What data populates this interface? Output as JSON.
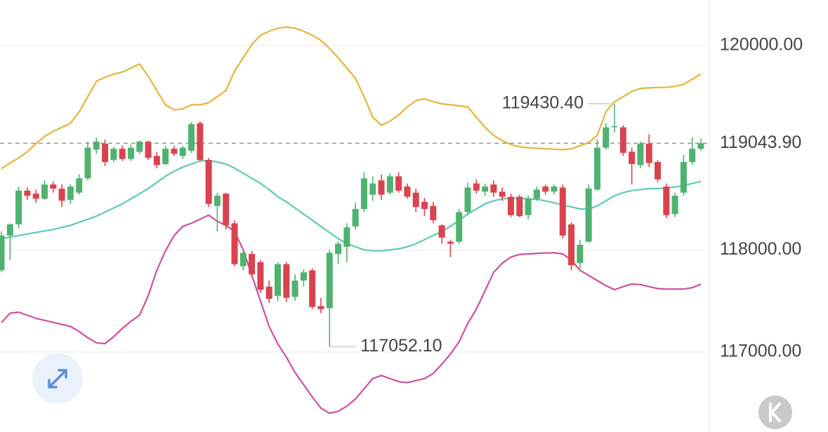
{
  "chart_data": {
    "type": "candlestick",
    "open": [
      117801,
      118140,
      118250,
      118580,
      118550,
      118500,
      118640,
      118600,
      118490,
      118560,
      118700,
      118980,
      119040,
      118880,
      118990,
      118890,
      118960,
      119060,
      118920,
      118840,
      118990,
      118920,
      118970,
      119240,
      118880,
      118430,
      118550,
      118260,
      117840,
      117960,
      117880,
      117640,
      117550,
      117860,
      117540,
      117700,
      117800,
      117450,
      117430,
      117960,
      118030,
      118230,
      118400,
      118540,
      118680,
      118560,
      118720,
      118620,
      118560,
      118470,
      118430,
      118240,
      118080,
      118080,
      118370,
      118650,
      118570,
      118640,
      118570,
      118520,
      118520,
      118340,
      118500,
      118620,
      118570,
      118610,
      118250,
      117870,
      118080,
      118590,
      119000,
      119200,
      119200,
      118960,
      118830,
      119040,
      118860,
      118620,
      118350,
      118560,
      118860,
      118990
    ],
    "high": [
      118180,
      118260,
      118620,
      118610,
      118590,
      118680,
      118670,
      118640,
      118640,
      118740,
      119060,
      119100,
      119080,
      119010,
      119020,
      119030,
      119070,
      119070,
      118960,
      119020,
      119020,
      119020,
      119250,
      119260,
      118900,
      118560,
      118560,
      118290,
      118010,
      117990,
      117900,
      117700,
      117880,
      117880,
      117760,
      117810,
      117820,
      117530,
      118000,
      118080,
      118260,
      118460,
      118760,
      118720,
      118740,
      118750,
      118760,
      118650,
      118600,
      118510,
      118470,
      118250,
      118100,
      118400,
      118660,
      118690,
      118650,
      118680,
      118610,
      118550,
      118540,
      118530,
      118620,
      118640,
      118640,
      118640,
      118270,
      118100,
      118640,
      119080,
      119240,
      119430.4,
      119220,
      119000,
      119060,
      119130,
      118880,
      118650,
      118560,
      118930,
      119100,
      119090
    ],
    "low": [
      117780,
      117900,
      118210,
      118490,
      118460,
      118490,
      118560,
      118420,
      118450,
      118540,
      118680,
      118940,
      118820,
      118860,
      118870,
      118870,
      118940,
      118880,
      118800,
      118830,
      118920,
      118890,
      118950,
      118870,
      118420,
      118180,
      118200,
      117840,
      117800,
      117730,
      117580,
      117480,
      117500,
      117490,
      117500,
      117640,
      117420,
      117380,
      117052.1,
      117860,
      117880,
      118200,
      118370,
      118480,
      118490,
      118540,
      118560,
      118500,
      118370,
      118330,
      118260,
      118060,
      117930,
      118060,
      118340,
      118550,
      118530,
      118520,
      118480,
      118320,
      118320,
      118300,
      118480,
      118540,
      118540,
      118110,
      117800,
      117820,
      118070,
      118580,
      118980,
      119150,
      118920,
      118640,
      118800,
      118810,
      118660,
      118310,
      118320,
      118530,
      118830,
      118970
    ],
    "close": [
      118140,
      118250,
      118580,
      118530,
      118500,
      118640,
      118600,
      118480,
      118620,
      118700,
      119000,
      119060,
      118860,
      118990,
      118890,
      119000,
      119060,
      118900,
      118830,
      118990,
      118940,
      119000,
      119230,
      118880,
      118450,
      118530,
      118240,
      117860,
      117970,
      117760,
      117610,
      117520,
      117860,
      117530,
      117700,
      117780,
      117440,
      117420,
      117970,
      118060,
      118220,
      118400,
      118700,
      118650,
      118540,
      118720,
      118580,
      118520,
      118420,
      118400,
      118290,
      118120,
      118060,
      118370,
      118610,
      118580,
      118620,
      118560,
      118520,
      118340,
      118330,
      118500,
      118590,
      118570,
      118620,
      118140,
      117850,
      118050,
      118600,
      119000,
      119200,
      119210,
      118950,
      118840,
      119040,
      118850,
      118690,
      118340,
      118530,
      118860,
      118990,
      119043.9
    ],
    "up_color": "#50b26f",
    "down_color": "#d9434f",
    "lines": [
      {
        "color": "#e3b53b",
        "values": [
          118795,
          118850,
          118900,
          118960,
          119040,
          119110,
          119160,
          119200,
          119240,
          119350,
          119500,
          119650,
          119690,
          119720,
          119740,
          119780,
          119820,
          119700,
          119560,
          119420,
          119370,
          119380,
          119420,
          119420,
          119440,
          119500,
          119560,
          119750,
          119880,
          120010,
          120100,
          120140,
          120170,
          120180,
          120170,
          120140,
          120100,
          120050,
          119970,
          119880,
          119780,
          119680,
          119500,
          119300,
          119220,
          119260,
          119320,
          119400,
          119460,
          119480,
          119450,
          119430,
          119420,
          119410,
          119400,
          119300,
          119200,
          119120,
          119070,
          119030,
          119010,
          119000,
          118995,
          118990,
          118985,
          118980,
          118990,
          119020,
          119050,
          119120,
          119350,
          119450,
          119500,
          119550,
          119580,
          119585,
          119590,
          119590,
          119600,
          119620,
          119670,
          119720
        ]
      },
      {
        "color": "#5ec9b5",
        "values": [
          118110,
          118125,
          118140,
          118155,
          118170,
          118185,
          118200,
          118220,
          118240,
          118270,
          118300,
          118330,
          118370,
          118410,
          118450,
          118500,
          118550,
          118600,
          118660,
          118720,
          118770,
          118810,
          118840,
          118870,
          118875,
          118860,
          118840,
          118800,
          118750,
          118700,
          118650,
          118590,
          118520,
          118470,
          118410,
          118350,
          118290,
          118230,
          118170,
          118110,
          118060,
          118030,
          118000,
          117990,
          117990,
          118000,
          118010,
          118030,
          118060,
          118100,
          118140,
          118180,
          118230,
          118290,
          118350,
          118400,
          118450,
          118480,
          118500,
          118505,
          118505,
          118500,
          118495,
          118480,
          118460,
          118440,
          118420,
          118400,
          118400,
          118430,
          118480,
          118530,
          118560,
          118580,
          118590,
          118600,
          118600,
          118605,
          118615,
          118630,
          118650,
          118670
        ]
      },
      {
        "color": "#cc4f9f",
        "values": [
          117288,
          117380,
          117390,
          117360,
          117330,
          117310,
          117290,
          117270,
          117250,
          117200,
          117140,
          117090,
          117082,
          117150,
          117230,
          117300,
          117360,
          117550,
          117800,
          117990,
          118140,
          118230,
          118260,
          118300,
          118340,
          118280,
          118240,
          118180,
          118000,
          117750,
          117500,
          117250,
          117080,
          116950,
          116800,
          116680,
          116560,
          116450,
          116400,
          116420,
          116470,
          116540,
          116640,
          116740,
          116770,
          116740,
          116710,
          116700,
          116720,
          116740,
          116790,
          116880,
          116980,
          117100,
          117280,
          117420,
          117600,
          117780,
          117870,
          117930,
          117955,
          117960,
          117965,
          117970,
          117972,
          117960,
          117900,
          117800,
          117750,
          117700,
          117650,
          117610,
          117640,
          117665,
          117660,
          117640,
          117620,
          117616,
          117616,
          117616,
          117630,
          117664
        ]
      }
    ],
    "ylim": [
      116217,
      120446
    ],
    "yticks": [
      {
        "value": 117000,
        "label": "117000.00"
      },
      {
        "value": 118000,
        "label": "118000.00"
      },
      {
        "value": 120000,
        "label": "120000.00"
      }
    ],
    "grid": true,
    "current_price": {
      "value": 119043.9,
      "label": "119043.90",
      "color": "#5cb86f"
    },
    "max_label": {
      "value": 119430.4,
      "label": "119430.40"
    },
    "min_label": {
      "value": 117052.1,
      "label": "117052.10"
    }
  }
}
